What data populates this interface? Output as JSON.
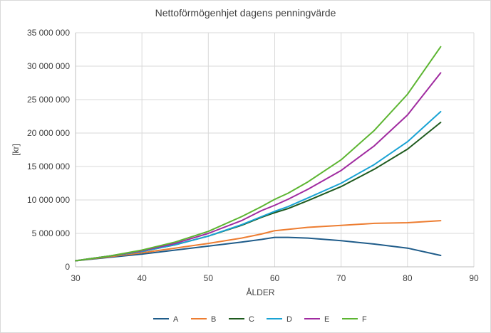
{
  "chart_data": {
    "type": "line",
    "title": "Nettoförmögenhjet dagens penningvärde",
    "xlabel": "ÅLDER",
    "ylabel": "[kr]",
    "xlim": [
      30,
      90
    ],
    "ylim": [
      0,
      35000000
    ],
    "x_ticks": [
      30,
      40,
      50,
      60,
      70,
      80,
      90
    ],
    "y_ticks": [
      0,
      5000000,
      10000000,
      15000000,
      20000000,
      25000000,
      30000000,
      35000000
    ],
    "x_tick_labels": [
      "30",
      "40",
      "50",
      "60",
      "70",
      "80",
      "90"
    ],
    "y_tick_labels": [
      "0",
      "5 000 000",
      "10 000 000",
      "15 000 000",
      "20 000 000",
      "25 000 000",
      "30 000 000",
      "35 000 000"
    ],
    "grid": "vertical-and-horizontal",
    "legend_position": "bottom",
    "x": [
      30,
      35,
      40,
      45,
      50,
      55,
      58,
      60,
      62,
      65,
      70,
      75,
      80,
      85
    ],
    "series": [
      {
        "name": "A",
        "color": "#1f5c8a",
        "values": [
          900000,
          1400000,
          1900000,
          2500000,
          3100000,
          3700000,
          4100000,
          4400000,
          4400000,
          4300000,
          3900000,
          3400000,
          2800000,
          1700000
        ]
      },
      {
        "name": "B",
        "color": "#ed7d31",
        "values": [
          900000,
          1500000,
          2100000,
          2800000,
          3500000,
          4300000,
          4900000,
          5400000,
          5600000,
          5900000,
          6200000,
          6500000,
          6600000,
          6900000
        ]
      },
      {
        "name": "C",
        "color": "#1e5a1e",
        "values": [
          900000,
          1600000,
          2300000,
          3300000,
          4600000,
          6200000,
          7400000,
          8100000,
          8700000,
          9900000,
          12000000,
          14600000,
          17600000,
          21600000
        ]
      },
      {
        "name": "D",
        "color": "#19a3d4",
        "values": [
          900000,
          1600000,
          2300000,
          3300000,
          4600000,
          6300000,
          7500000,
          8300000,
          9000000,
          10300000,
          12500000,
          15300000,
          18700000,
          23200000
        ]
      },
      {
        "name": "E",
        "color": "#a02ba0",
        "values": [
          900000,
          1600000,
          2400000,
          3500000,
          5000000,
          6900000,
          8400000,
          9200000,
          10100000,
          11600000,
          14400000,
          18100000,
          22700000,
          29000000
        ]
      },
      {
        "name": "F",
        "color": "#5cb531",
        "values": [
          900000,
          1600000,
          2500000,
          3700000,
          5300000,
          7500000,
          9000000,
          10100000,
          11000000,
          12700000,
          16000000,
          20400000,
          25800000,
          32900000
        ]
      }
    ]
  }
}
